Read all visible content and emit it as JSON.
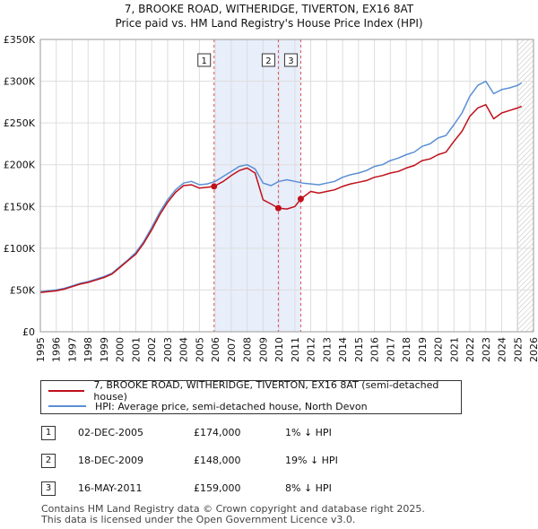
{
  "chart_data": {
    "type": "line",
    "title": "7, BROOKE ROAD, WITHERIDGE, TIVERTON, EX16 8AT",
    "subtitle": "Price paid vs. HM Land Registry's House Price Index (HPI)",
    "xlabel": "",
    "ylabel": "",
    "xlim": [
      1995,
      2026
    ],
    "ylim": [
      0,
      350000
    ],
    "x_ticks": [
      1995,
      1996,
      1997,
      1998,
      1999,
      2000,
      2001,
      2002,
      2003,
      2004,
      2005,
      2006,
      2007,
      2008,
      2009,
      2010,
      2011,
      2012,
      2013,
      2014,
      2015,
      2016,
      2017,
      2018,
      2019,
      2020,
      2021,
      2022,
      2023,
      2024,
      2025,
      2026
    ],
    "y_ticks": [
      {
        "value": 0,
        "label": "£0"
      },
      {
        "value": 50000,
        "label": "£50K"
      },
      {
        "value": 100000,
        "label": "£100K"
      },
      {
        "value": 150000,
        "label": "£150K"
      },
      {
        "value": 200000,
        "label": "£200K"
      },
      {
        "value": 250000,
        "label": "£250K"
      },
      {
        "value": 300000,
        "label": "£300K"
      },
      {
        "value": 350000,
        "label": "£350K"
      }
    ],
    "grid": true,
    "shaded_region": {
      "from": 2005.92,
      "to": 2011.37
    },
    "future_region_from": 2025.0,
    "series": [
      {
        "name": "HPI",
        "color": "#5b8fd4",
        "x": [
          1995,
          1995.5,
          1996,
          1996.5,
          1997,
          1997.5,
          1998,
          1998.5,
          1999,
          1999.5,
          2000,
          2000.5,
          2001,
          2001.5,
          2002,
          2002.5,
          2003,
          2003.5,
          2004,
          2004.5,
          2005,
          2005.5,
          2006,
          2006.5,
          2007,
          2007.5,
          2008,
          2008.5,
          2009,
          2009.5,
          2010,
          2010.5,
          2011,
          2011.5,
          2012,
          2012.5,
          2013,
          2013.5,
          2014,
          2014.5,
          2015,
          2015.5,
          2016,
          2016.5,
          2017,
          2017.5,
          2018,
          2018.5,
          2019,
          2019.5,
          2020,
          2020.5,
          2021,
          2021.5,
          2022,
          2022.5,
          2023,
          2023.5,
          2024,
          2024.5,
          2025,
          2025.25
        ],
        "y": [
          48000,
          49000,
          50000,
          52000,
          55000,
          58000,
          60000,
          63000,
          66000,
          70000,
          78000,
          86000,
          95000,
          108000,
          125000,
          143000,
          158000,
          170000,
          178000,
          180000,
          176000,
          177000,
          180000,
          186000,
          192000,
          198000,
          200000,
          195000,
          178000,
          175000,
          180000,
          182000,
          180000,
          178000,
          177000,
          176000,
          178000,
          180000,
          185000,
          188000,
          190000,
          193000,
          198000,
          200000,
          205000,
          208000,
          212000,
          215000,
          222000,
          225000,
          232000,
          235000,
          248000,
          262000,
          282000,
          295000,
          300000,
          285000,
          290000,
          292000,
          295000,
          298000
        ]
      },
      {
        "name": "Price paid",
        "color": "#c0101a",
        "x": [
          1995,
          1995.5,
          1996,
          1996.5,
          1997,
          1997.5,
          1998,
          1998.5,
          1999,
          1999.5,
          2000,
          2000.5,
          2001,
          2001.5,
          2002,
          2002.5,
          2003,
          2003.5,
          2004,
          2004.5,
          2005,
          2005.5,
          2005.92,
          2006.5,
          2007,
          2007.5,
          2008,
          2008.5,
          2009,
          2009.5,
          2009.96,
          2010.5,
          2011,
          2011.37,
          2012,
          2012.5,
          2013,
          2013.5,
          2014,
          2014.5,
          2015,
          2015.5,
          2016,
          2016.5,
          2017,
          2017.5,
          2018,
          2018.5,
          2019,
          2019.5,
          2020,
          2020.5,
          2021,
          2021.5,
          2022,
          2022.5,
          2023,
          2023.5,
          2024,
          2024.5,
          2025,
          2025.25
        ],
        "y": [
          47000,
          48000,
          49000,
          51000,
          54000,
          57000,
          59000,
          62000,
          65000,
          69000,
          77000,
          85000,
          93000,
          106000,
          122000,
          140000,
          155000,
          167000,
          175000,
          176000,
          172000,
          173000,
          174000,
          180000,
          187000,
          193000,
          196000,
          190000,
          158000,
          153000,
          148000,
          147000,
          150000,
          159000,
          168000,
          166000,
          168000,
          170000,
          174000,
          177000,
          179000,
          181000,
          185000,
          187000,
          190000,
          192000,
          196000,
          199000,
          205000,
          207000,
          212000,
          215000,
          228000,
          240000,
          258000,
          268000,
          272000,
          255000,
          262000,
          265000,
          268000,
          270000
        ]
      }
    ],
    "markers": [
      {
        "label": "1",
        "x": 2005.92,
        "y": 174000
      },
      {
        "label": "2",
        "x": 2009.96,
        "y": 148000
      },
      {
        "label": "3",
        "x": 2011.37,
        "y": 159000
      }
    ]
  },
  "legend": {
    "price_paid": "7, BROOKE ROAD, WITHERIDGE, TIVERTON, EX16 8AT (semi-detached house)",
    "hpi": "HPI: Average price, semi-detached house, North Devon"
  },
  "transactions": [
    {
      "num": "1",
      "date": "02-DEC-2005",
      "price": "£174,000",
      "pct": "1% ↓ HPI"
    },
    {
      "num": "2",
      "date": "18-DEC-2009",
      "price": "£148,000",
      "pct": "19% ↓ HPI"
    },
    {
      "num": "3",
      "date": "16-MAY-2011",
      "price": "£159,000",
      "pct": "8% ↓ HPI"
    }
  ],
  "footer": {
    "line1": "Contains HM Land Registry data © Crown copyright and database right 2025.",
    "line2": "This data is licensed under the Open Government Licence v3.0."
  }
}
